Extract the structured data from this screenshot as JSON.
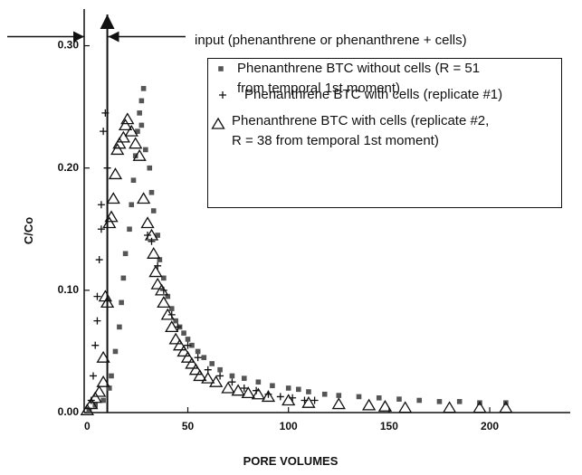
{
  "chart_data": {
    "type": "scatter",
    "xlabel": "PORE VOLUMES",
    "ylabel": "C/Co",
    "annotation": {
      "text": "input (phenanthrene or phenanthrene + cells)",
      "x": 10
    },
    "xlim": [
      -1.5,
      240
    ],
    "ylim": [
      0,
      0.33
    ],
    "xticks": [
      0,
      50,
      100,
      150,
      200
    ],
    "yticks": [
      {
        "value": 0,
        "label": "0.00"
      },
      {
        "value": 0.1,
        "label": "0.10"
      },
      {
        "value": 0.2,
        "label": "0.20"
      },
      {
        "value": 0.3,
        "label": "0.30"
      }
    ],
    "series": [
      {
        "name": "Phenanthrene BTC without cells (R = 51\nfrom temporal 1st moment)",
        "color": "#555555",
        "marker": "square",
        "x": [
          1,
          4,
          8,
          11,
          12,
          14,
          16,
          17,
          18,
          19,
          21,
          22,
          23,
          24,
          25,
          26,
          27,
          28,
          27,
          29,
          31,
          32,
          33,
          35,
          36,
          38,
          40,
          42,
          44,
          46,
          48,
          50,
          52,
          55,
          58,
          62,
          66,
          72,
          78,
          85,
          92,
          100,
          105,
          110,
          118,
          125,
          135,
          145,
          155,
          165,
          175,
          185,
          195,
          208
        ],
        "values": [
          0.002,
          0.006,
          0.01,
          0.02,
          0.03,
          0.05,
          0.07,
          0.09,
          0.11,
          0.13,
          0.15,
          0.17,
          0.19,
          0.21,
          0.23,
          0.245,
          0.255,
          0.265,
          0.235,
          0.215,
          0.2,
          0.18,
          0.165,
          0.145,
          0.125,
          0.11,
          0.095,
          0.085,
          0.075,
          0.07,
          0.065,
          0.06,
          0.055,
          0.05,
          0.045,
          0.04,
          0.035,
          0.03,
          0.028,
          0.025,
          0.022,
          0.02,
          0.019,
          0.017,
          0.015,
          0.014,
          0.013,
          0.012,
          0.011,
          0.01,
          0.009,
          0.009,
          0.008,
          0.008
        ]
      },
      {
        "name": "Phenanthrene BTC with cells (replicate #1)",
        "color": "#111111",
        "marker": "plus",
        "x": [
          2,
          3,
          4,
          5,
          5,
          6,
          7,
          7,
          8,
          9,
          10,
          30,
          32,
          35,
          38,
          42,
          45,
          50,
          55,
          60,
          66,
          72,
          78,
          84,
          90,
          96,
          102,
          108,
          113
        ],
        "values": [
          0.01,
          0.03,
          0.055,
          0.075,
          0.095,
          0.125,
          0.15,
          0.17,
          0.23,
          0.245,
          0.2,
          0.145,
          0.14,
          0.12,
          0.1,
          0.08,
          0.07,
          0.055,
          0.045,
          0.035,
          0.03,
          0.025,
          0.02,
          0.018,
          0.015,
          0.013,
          0.012,
          0.01,
          0.01
        ]
      },
      {
        "name": "Phenanthrene BTC with cells (replicate #2,\nR = 38 from temporal 1st moment)",
        "color": "#111111",
        "marker": "triangle",
        "x": [
          0,
          2,
          4,
          6,
          8,
          8,
          9,
          10,
          11,
          12,
          13,
          14,
          15,
          16,
          18,
          19,
          20,
          22,
          24,
          26,
          28,
          30,
          32,
          33,
          34,
          35,
          37,
          38,
          40,
          42,
          44,
          46,
          48,
          50,
          52,
          54,
          56,
          60,
          64,
          70,
          75,
          80,
          85,
          90,
          100,
          110,
          125,
          140,
          148,
          158,
          180,
          195,
          208
        ],
        "values": [
          0.002,
          0.007,
          0.012,
          0.017,
          0.025,
          0.045,
          0.095,
          0.09,
          0.155,
          0.16,
          0.175,
          0.195,
          0.215,
          0.22,
          0.225,
          0.235,
          0.24,
          0.23,
          0.22,
          0.21,
          0.175,
          0.155,
          0.145,
          0.13,
          0.115,
          0.105,
          0.1,
          0.09,
          0.08,
          0.07,
          0.06,
          0.055,
          0.05,
          0.045,
          0.04,
          0.035,
          0.03,
          0.028,
          0.025,
          0.02,
          0.018,
          0.016,
          0.015,
          0.013,
          0.01,
          0.008,
          0.007,
          0.006,
          0.005,
          0.004,
          0.004,
          0.004,
          0.004
        ]
      }
    ]
  }
}
